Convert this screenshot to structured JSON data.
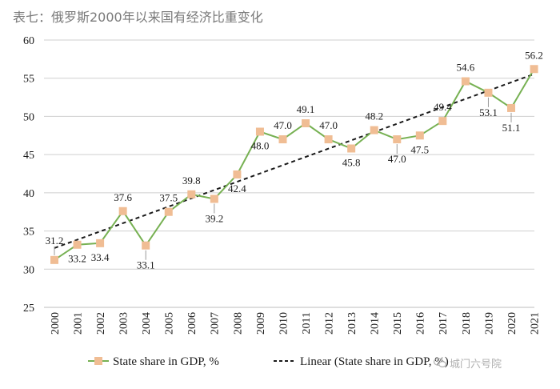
{
  "page": {
    "title": "表七：俄罗斯2000年以来国有经济比重变化"
  },
  "colors": {
    "series_line": "#77b153",
    "marker": "#f0bd94",
    "trend_line": "#1a1a1a",
    "grid": "#cfcfcf",
    "text": "#1a1a1a"
  },
  "watermark": {
    "text": "城门六号院"
  },
  "chart_data": {
    "type": "line",
    "title": "",
    "xlabel": "",
    "ylabel": "",
    "ylim": [
      25,
      60
    ],
    "yticks": [
      "25",
      "30",
      "35",
      "40",
      "45",
      "50",
      "55",
      "60"
    ],
    "grid": true,
    "legend_position": "bottom",
    "categories": [
      "2000",
      "2001",
      "2002",
      "2003",
      "2004",
      "2005",
      "2006",
      "2007",
      "2008",
      "2009",
      "2010",
      "2011",
      "2012",
      "2013",
      "2014",
      "2015",
      "2016",
      "2017",
      "2018",
      "2019",
      "2020",
      "2021"
    ],
    "series": [
      {
        "name": "State share in GDP, %",
        "values": [
          31.2,
          33.2,
          33.4,
          37.6,
          33.1,
          37.5,
          39.8,
          39.2,
          42.4,
          48.0,
          47.0,
          49.1,
          47.0,
          45.8,
          48.2,
          47.0,
          47.5,
          49.4,
          54.6,
          53.1,
          51.1,
          56.2
        ],
        "labels": [
          "31.2",
          "33.2",
          "33.4",
          "37.6",
          "33.1",
          "37.5",
          "39.8",
          "39.2",
          "42.4",
          "48.0",
          "47.0",
          "49.1",
          "47.0",
          "45.8",
          "48.2",
          "47.0",
          "47.5",
          "49.4",
          "54.6",
          "53.1",
          "51.1",
          "56.2"
        ]
      }
    ],
    "trendline": {
      "name": "Linear (State share in GDP, %)",
      "type": "linear"
    }
  }
}
